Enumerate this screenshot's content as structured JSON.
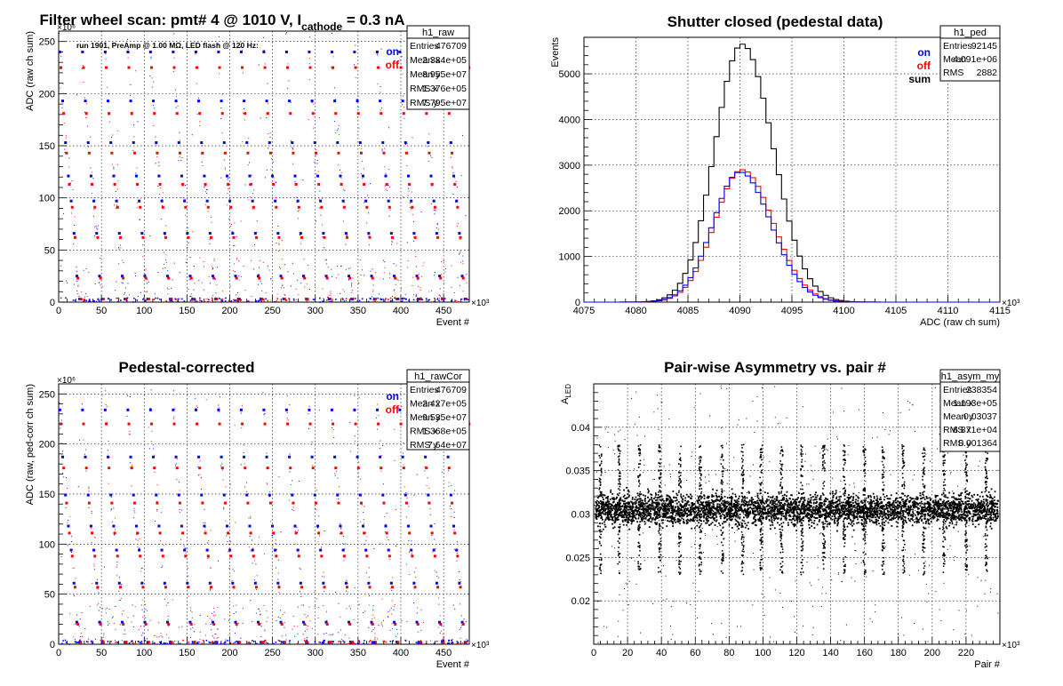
{
  "chart_data": [
    {
      "type": "scatter",
      "title": "Filter wheel scan: pmt#   4 @  1010 V, I",
      "title_sub": "cathode",
      "title_tail": " = 0.3 nA",
      "annotation": "run 1901, PreAmp @ 1.00 MΩ, LED flash @  120 Hz:",
      "xlabel": "Event #",
      "ylabel": "ADC (raw ch sum)",
      "x_exponent": "×10³",
      "y_exponent": "×10⁶",
      "xlim": [
        0,
        480
      ],
      "ylim": [
        0,
        260
      ],
      "x_ticks": [
        0,
        50,
        100,
        150,
        200,
        250,
        300,
        350,
        400,
        450
      ],
      "y_ticks": [
        0,
        50,
        100,
        150,
        200,
        250
      ],
      "legend": [
        {
          "label": "on",
          "color": "#0000ff"
        },
        {
          "label": "off",
          "color": "#ff0000"
        }
      ],
      "stats": {
        "name": "h1_raw",
        "rows": [
          {
            "k": "Entries",
            "v": "476709"
          },
          {
            "k": "Mean x",
            "v": "2.384e+05"
          },
          {
            "k": "Mean y",
            "v": "8.955e+07"
          },
          {
            "k": "RMS x",
            "v": "1.376e+05"
          },
          {
            "k": "RMS y",
            "v": "7.795e+07"
          }
        ]
      },
      "series": [
        {
          "name": "on",
          "color": "#0000ff",
          "levels": [
            240,
            193,
            153,
            121,
            97,
            66,
            25,
            3
          ]
        },
        {
          "name": "off",
          "color": "#ff0000",
          "levels": [
            225,
            181,
            143,
            113,
            91,
            62,
            23,
            3
          ]
        }
      ],
      "cycle_period": 26.5
    },
    {
      "type": "line",
      "title": "Shutter closed (pedestal data)",
      "xlabel": "ADC (raw ch sum)",
      "ylabel": "Events",
      "x_exponent": "×10³",
      "xlim": [
        4075,
        4115
      ],
      "ylim": [
        0,
        5800
      ],
      "x_ticks": [
        4075,
        4080,
        4085,
        4090,
        4095,
        4100,
        4105,
        4110,
        4115
      ],
      "y_ticks": [
        0,
        1000,
        2000,
        3000,
        4000,
        5000
      ],
      "legend": [
        {
          "label": "on",
          "color": "#0000ff"
        },
        {
          "label": "off",
          "color": "#ff0000"
        },
        {
          "label": "sum",
          "color": "#000000"
        }
      ],
      "stats": {
        "name": "h1_ped",
        "rows": [
          {
            "k": "Entries",
            "v": "92145"
          },
          {
            "k": "Mean",
            "v": "4.091e+06"
          },
          {
            "k": "RMS",
            "v": "2882"
          }
        ]
      },
      "series": [
        {
          "name": "sum",
          "color": "#000000",
          "mean": 4090.2,
          "sigma": 2.6,
          "peak": 5650
        },
        {
          "name": "off",
          "color": "#ff0000",
          "mean": 4090.2,
          "sigma": 2.6,
          "peak": 2900
        },
        {
          "name": "on",
          "color": "#0000ff",
          "mean": 4090.0,
          "sigma": 2.6,
          "peak": 2850
        }
      ]
    },
    {
      "type": "scatter",
      "title": "Pedestal-corrected",
      "xlabel": "Event #",
      "ylabel": "ADC (raw, ped-corr ch sum)",
      "x_exponent": "×10³",
      "y_exponent": "×10⁶",
      "xlim": [
        0,
        480
      ],
      "ylim": [
        0,
        260
      ],
      "x_ticks": [
        0,
        50,
        100,
        150,
        200,
        250,
        300,
        350,
        400,
        450
      ],
      "y_ticks": [
        0,
        50,
        100,
        150,
        200,
        250
      ],
      "legend": [
        {
          "label": "on",
          "color": "#0000ff"
        },
        {
          "label": "off",
          "color": "#ff0000"
        }
      ],
      "stats": {
        "name": "h1_rawCor",
        "rows": [
          {
            "k": "Entries",
            "v": "476709"
          },
          {
            "k": "Mean x",
            "v": "2.427e+05"
          },
          {
            "k": "Mean y",
            "v": "9.535e+07"
          },
          {
            "k": "RMS x",
            "v": "1.368e+05"
          },
          {
            "k": "RMS y",
            "v": "7.64e+07"
          }
        ]
      },
      "series": [
        {
          "name": "on",
          "color": "#0000ff",
          "levels": [
            234,
            187,
            149,
            118,
            94,
            61,
            22,
            2
          ]
        },
        {
          "name": "off",
          "color": "#ff0000",
          "levels": [
            220,
            176,
            141,
            111,
            88,
            57,
            20,
            2
          ]
        }
      ],
      "cycle_period": 26.5
    },
    {
      "type": "scatter",
      "title": "Pair-wise Asymmetry vs. pair #",
      "xlabel": "Pair #",
      "ylabel": "A",
      "ylabel_sub": "LED",
      "x_exponent": "×10³",
      "xlim": [
        0,
        240
      ],
      "ylim": [
        0.015,
        0.045
      ],
      "x_ticks": [
        0,
        20,
        40,
        60,
        80,
        100,
        120,
        140,
        160,
        180,
        200,
        220
      ],
      "y_ticks": [
        0.02,
        0.025,
        0.03,
        0.035,
        0.04
      ],
      "stats": {
        "name": "h1_asym_my",
        "rows": [
          {
            "k": "Entries",
            "v": "238354"
          },
          {
            "k": "Mean x",
            "v": "1.193e+05"
          },
          {
            "k": "Mean y",
            "v": "0.03037"
          },
          {
            "k": "RMS x",
            "v": "6.871e+04"
          },
          {
            "k": "RMS y",
            "v": "0.001364"
          }
        ]
      },
      "band_center": 0.0305,
      "band_halfwidth": 0.0015,
      "spikes": [
        4,
        15,
        27,
        39,
        51,
        63,
        76,
        88,
        99,
        111,
        123,
        136,
        148,
        160,
        171,
        183,
        195,
        207,
        220,
        232
      ]
    }
  ]
}
